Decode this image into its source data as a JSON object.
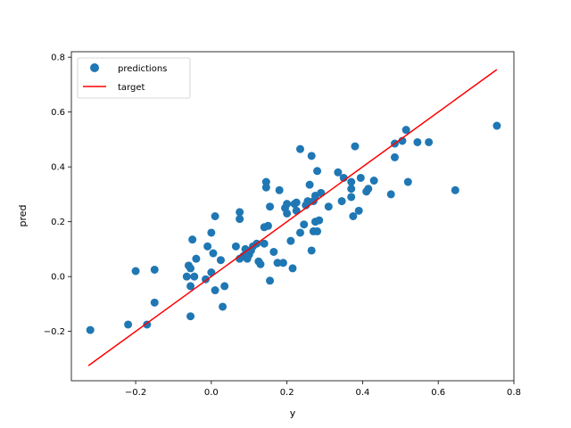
{
  "chart_data": {
    "type": "scatter",
    "xlabel": "y",
    "ylabel": "pred",
    "xlim": [
      -0.37,
      0.8
    ],
    "ylim": [
      -0.38,
      0.82
    ],
    "xticks": [
      -0.2,
      0.0,
      0.2,
      0.4,
      0.6,
      0.8
    ],
    "yticks": [
      -0.2,
      0.0,
      0.2,
      0.4,
      0.6,
      0.8
    ],
    "xtick_labels": [
      "−0.2",
      "0.0",
      "0.2",
      "0.4",
      "0.6",
      "0.8"
    ],
    "ytick_labels": [
      "−0.2",
      "0.0",
      "0.2",
      "0.4",
      "0.6",
      "0.8"
    ],
    "grid": false,
    "legend": {
      "placement": "top-left",
      "entries": [
        {
          "label": "predictions",
          "marker": "circle",
          "color": "#1f77b4"
        },
        {
          "label": "target",
          "marker": "line",
          "color": "#ff0000"
        }
      ]
    },
    "series": [
      {
        "name": "predictions",
        "kind": "scatter",
        "color": "#1f77b4",
        "points": [
          [
            -0.32,
            -0.195
          ],
          [
            -0.22,
            -0.175
          ],
          [
            -0.2,
            0.02
          ],
          [
            -0.17,
            -0.175
          ],
          [
            -0.15,
            0.025
          ],
          [
            -0.15,
            -0.095
          ],
          [
            -0.065,
            0.0
          ],
          [
            -0.06,
            0.04
          ],
          [
            -0.055,
            0.03
          ],
          [
            -0.055,
            -0.035
          ],
          [
            -0.055,
            -0.145
          ],
          [
            -0.05,
            0.135
          ],
          [
            -0.045,
            0.0
          ],
          [
            -0.04,
            0.065
          ],
          [
            -0.015,
            -0.01
          ],
          [
            -0.01,
            0.11
          ],
          [
            0.0,
            0.015
          ],
          [
            0.0,
            0.16
          ],
          [
            0.005,
            0.085
          ],
          [
            0.01,
            0.22
          ],
          [
            0.01,
            -0.05
          ],
          [
            0.025,
            0.06
          ],
          [
            0.03,
            -0.11
          ],
          [
            0.035,
            -0.035
          ],
          [
            0.065,
            0.11
          ],
          [
            0.075,
            0.235
          ],
          [
            0.075,
            0.21
          ],
          [
            0.075,
            0.065
          ],
          [
            0.085,
            0.075
          ],
          [
            0.09,
            0.1
          ],
          [
            0.095,
            0.065
          ],
          [
            0.1,
            0.08
          ],
          [
            0.105,
            0.095
          ],
          [
            0.11,
            0.11
          ],
          [
            0.12,
            0.12
          ],
          [
            0.125,
            0.055
          ],
          [
            0.13,
            0.045
          ],
          [
            0.14,
            0.12
          ],
          [
            0.14,
            0.18
          ],
          [
            0.145,
            0.325
          ],
          [
            0.145,
            0.345
          ],
          [
            0.15,
            0.185
          ],
          [
            0.155,
            0.255
          ],
          [
            0.155,
            -0.015
          ],
          [
            0.165,
            0.09
          ],
          [
            0.175,
            0.05
          ],
          [
            0.18,
            0.315
          ],
          [
            0.19,
            0.05
          ],
          [
            0.195,
            0.25
          ],
          [
            0.2,
            0.265
          ],
          [
            0.2,
            0.23
          ],
          [
            0.21,
            0.13
          ],
          [
            0.215,
            0.03
          ],
          [
            0.22,
            0.265
          ],
          [
            0.225,
            0.24
          ],
          [
            0.225,
            0.27
          ],
          [
            0.235,
            0.465
          ],
          [
            0.235,
            0.16
          ],
          [
            0.245,
            0.19
          ],
          [
            0.25,
            0.26
          ],
          [
            0.255,
            0.275
          ],
          [
            0.26,
            0.335
          ],
          [
            0.265,
            0.44
          ],
          [
            0.265,
            0.095
          ],
          [
            0.27,
            0.275
          ],
          [
            0.27,
            0.165
          ],
          [
            0.275,
            0.295
          ],
          [
            0.275,
            0.2
          ],
          [
            0.28,
            0.385
          ],
          [
            0.28,
            0.165
          ],
          [
            0.285,
            0.205
          ],
          [
            0.29,
            0.305
          ],
          [
            0.31,
            0.255
          ],
          [
            0.335,
            0.38
          ],
          [
            0.345,
            0.275
          ],
          [
            0.35,
            0.36
          ],
          [
            0.37,
            0.32
          ],
          [
            0.37,
            0.29
          ],
          [
            0.37,
            0.345
          ],
          [
            0.375,
            0.22
          ],
          [
            0.38,
            0.475
          ],
          [
            0.39,
            0.24
          ],
          [
            0.395,
            0.36
          ],
          [
            0.41,
            0.31
          ],
          [
            0.415,
            0.32
          ],
          [
            0.43,
            0.35
          ],
          [
            0.475,
            0.3
          ],
          [
            0.485,
            0.485
          ],
          [
            0.485,
            0.435
          ],
          [
            0.505,
            0.495
          ],
          [
            0.515,
            0.535
          ],
          [
            0.52,
            0.345
          ],
          [
            0.545,
            0.49
          ],
          [
            0.575,
            0.49
          ],
          [
            0.645,
            0.315
          ],
          [
            0.755,
            0.55
          ]
        ]
      },
      {
        "name": "target",
        "kind": "line",
        "color": "#ff0000",
        "points": [
          [
            -0.325,
            -0.325
          ],
          [
            0.755,
            0.755
          ]
        ]
      }
    ]
  }
}
